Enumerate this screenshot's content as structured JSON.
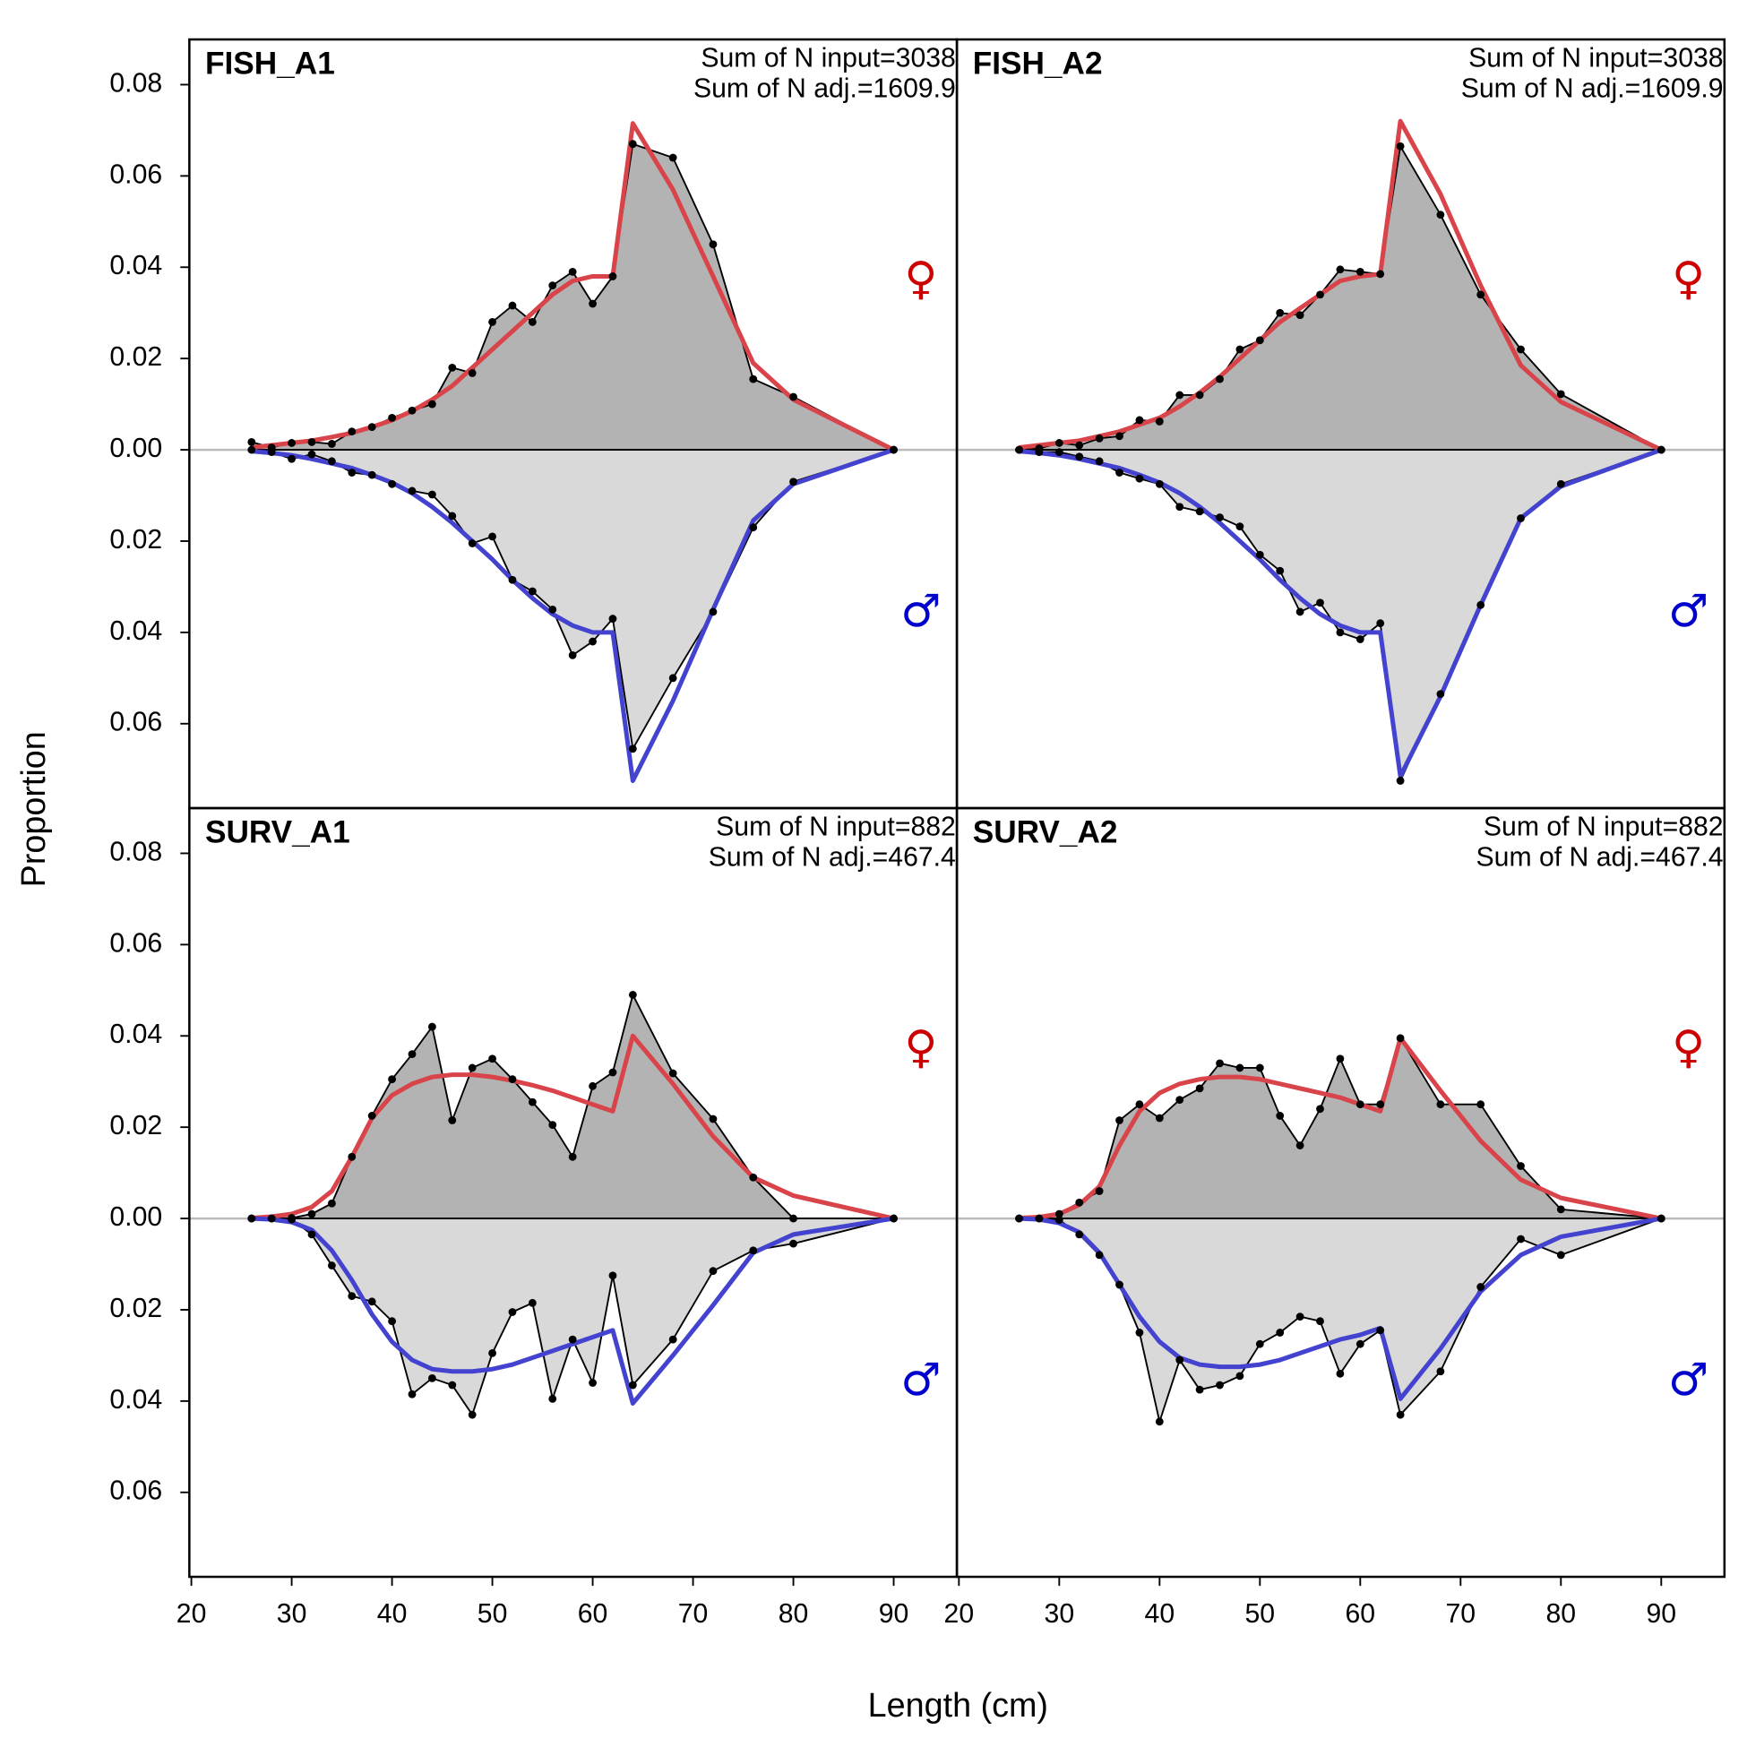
{
  "shared": {
    "xlabel": "Length (cm)",
    "ylabel": "Proportion",
    "xlim": [
      19.8,
      96.3
    ],
    "xticks": [
      20,
      30,
      40,
      50,
      60,
      70,
      80,
      90
    ],
    "ylim": [
      -0.0785,
      0.0899
    ],
    "yticks": [
      0.08,
      0.06,
      0.04,
      0.02,
      {
        "value": 0,
        "label": "0.00"
      },
      {
        "value": -0.02,
        "label": "0.02"
      },
      {
        "value": -0.04,
        "label": "0.04"
      },
      {
        "value": -0.06,
        "label": "0.06"
      }
    ]
  },
  "chart_data": [
    {
      "type": "area",
      "title": "FISH_A1",
      "annotations": [
        "Sum of N input=3038",
        "Sum of N adj.=1609.9"
      ],
      "x": [
        26,
        28,
        30,
        32,
        34,
        36,
        38,
        40,
        42,
        44,
        46,
        48,
        50,
        52,
        54,
        56,
        58,
        60,
        62,
        64,
        68,
        72,
        76,
        80,
        90
      ],
      "series": [
        {
          "kind": "observed",
          "symbol": "♀",
          "color": "#cc0000",
          "fill": "#b3b3b3",
          "values": [
            0.0017,
            0.0005,
            0.0015,
            0.0017,
            0.0013,
            0.004,
            0.005,
            0.007,
            0.0086,
            0.01,
            0.018,
            0.0168,
            0.028,
            0.0316,
            0.028,
            0.036,
            0.039,
            0.032,
            0.038,
            0.067,
            0.064,
            0.045,
            0.0155,
            0.0116,
            0
          ]
        },
        {
          "kind": "expected",
          "color": "#d9434a",
          "values": [
            0.0005,
            0.001,
            0.0015,
            0.002,
            0.0028,
            0.0037,
            0.005,
            0.0065,
            0.0085,
            0.011,
            0.014,
            0.018,
            0.022,
            0.026,
            0.03,
            0.034,
            0.037,
            0.038,
            0.038,
            0.0715,
            0.057,
            0.038,
            0.019,
            0.011,
            0
          ]
        },
        {
          "kind": "observed",
          "symbol": "♂",
          "color": "#0000cc",
          "fill": "#d9d9d9",
          "values": [
            0,
            -0.0005,
            -0.002,
            -0.001,
            -0.0025,
            -0.005,
            -0.0055,
            -0.0075,
            -0.009,
            -0.0098,
            -0.0145,
            -0.0205,
            -0.019,
            -0.0285,
            -0.031,
            -0.035,
            -0.045,
            -0.042,
            -0.037,
            -0.0655,
            -0.05,
            -0.0355,
            -0.017,
            -0.007,
            0
          ]
        },
        {
          "kind": "expected",
          "color": "#4343cf",
          "values": [
            -0.0003,
            -0.0007,
            -0.0012,
            -0.002,
            -0.003,
            -0.004,
            -0.0055,
            -0.0072,
            -0.0095,
            -0.0125,
            -0.016,
            -0.02,
            -0.024,
            -0.0285,
            -0.0325,
            -0.036,
            -0.0385,
            -0.04,
            -0.04,
            -0.0725,
            -0.055,
            -0.035,
            -0.0155,
            -0.0075,
            0
          ]
        }
      ]
    },
    {
      "type": "area",
      "title": "FISH_A2",
      "annotations": [
        "Sum of N input=3038",
        "Sum of N adj.=1609.9"
      ],
      "x": [
        26,
        28,
        30,
        32,
        34,
        36,
        38,
        40,
        42,
        44,
        46,
        48,
        50,
        52,
        54,
        56,
        58,
        60,
        62,
        64,
        68,
        72,
        76,
        80,
        90
      ],
      "series": [
        {
          "kind": "observed",
          "symbol": "♀",
          "color": "#cc0000",
          "fill": "#b3b3b3",
          "values": [
            0,
            0.0003,
            0.0015,
            0.001,
            0.0025,
            0.003,
            0.0065,
            0.0062,
            0.012,
            0.012,
            0.0155,
            0.022,
            0.024,
            0.03,
            0.0295,
            0.034,
            0.0395,
            0.039,
            0.0385,
            0.0665,
            0.0515,
            0.034,
            0.022,
            0.0122,
            0
          ]
        },
        {
          "kind": "expected",
          "color": "#d9434a",
          "values": [
            0.0005,
            0.001,
            0.0015,
            0.002,
            0.003,
            0.004,
            0.0055,
            0.007,
            0.0095,
            0.0125,
            0.016,
            0.02,
            0.024,
            0.028,
            0.031,
            0.034,
            0.037,
            0.038,
            0.0385,
            0.072,
            0.056,
            0.036,
            0.0185,
            0.0105,
            0
          ]
        },
        {
          "kind": "observed",
          "symbol": "♂",
          "color": "#0000cc",
          "fill": "#d9d9d9",
          "values": [
            0,
            -0.0005,
            -0.0005,
            -0.0015,
            -0.0025,
            -0.005,
            -0.0063,
            -0.0075,
            -0.0125,
            -0.0135,
            -0.0148,
            -0.0168,
            -0.023,
            -0.0265,
            -0.0355,
            -0.0335,
            -0.04,
            -0.0415,
            -0.038,
            -0.0725,
            -0.0535,
            -0.034,
            -0.015,
            -0.0075,
            0
          ]
        },
        {
          "kind": "expected",
          "color": "#4343cf",
          "values": [
            -0.0003,
            -0.0007,
            -0.0012,
            -0.002,
            -0.003,
            -0.004,
            -0.0055,
            -0.0072,
            -0.0095,
            -0.0125,
            -0.016,
            -0.02,
            -0.024,
            -0.0285,
            -0.0325,
            -0.036,
            -0.0385,
            -0.04,
            -0.04,
            -0.0715,
            -0.054,
            -0.034,
            -0.015,
            -0.008,
            0
          ]
        }
      ]
    },
    {
      "type": "area",
      "title": "SURV_A1",
      "annotations": [
        "Sum of N input=882",
        "Sum of N adj.=467.4"
      ],
      "x": [
        26,
        28,
        30,
        32,
        34,
        36,
        38,
        40,
        42,
        44,
        46,
        48,
        50,
        52,
        54,
        56,
        58,
        60,
        62,
        64,
        68,
        72,
        76,
        80,
        90
      ],
      "series": [
        {
          "kind": "observed",
          "symbol": "♀",
          "color": "#cc0000",
          "fill": "#b3b3b3",
          "values": [
            0,
            0,
            0.0001,
            0.001,
            0.0033,
            0.0135,
            0.0225,
            0.0305,
            0.036,
            0.042,
            0.0215,
            0.033,
            0.035,
            0.0305,
            0.0255,
            0.0205,
            0.0135,
            0.029,
            0.032,
            0.049,
            0.0318,
            0.0218,
            0.009,
            0,
            0
          ]
        },
        {
          "kind": "expected",
          "color": "#d9434a",
          "values": [
            0.0001,
            0.0004,
            0.001,
            0.0025,
            0.006,
            0.0135,
            0.022,
            0.027,
            0.0295,
            0.031,
            0.0315,
            0.0315,
            0.031,
            0.0302,
            0.0292,
            0.028,
            0.0265,
            0.025,
            0.0235,
            0.04,
            0.0295,
            0.018,
            0.009,
            0.005,
            0
          ]
        },
        {
          "kind": "observed",
          "symbol": "♂",
          "color": "#0000cc",
          "fill": "#d9d9d9",
          "values": [
            0,
            0,
            -0.0002,
            -0.0035,
            -0.0103,
            -0.017,
            -0.0182,
            -0.0225,
            -0.0385,
            -0.035,
            -0.0365,
            -0.043,
            -0.0295,
            -0.0205,
            -0.0185,
            -0.0395,
            -0.0265,
            -0.036,
            -0.0125,
            -0.0365,
            -0.0265,
            -0.0115,
            -0.007,
            -0.0055,
            0
          ]
        },
        {
          "kind": "expected",
          "color": "#4343cf",
          "values": [
            0,
            -0.0002,
            -0.0008,
            -0.0025,
            -0.007,
            -0.0135,
            -0.021,
            -0.027,
            -0.031,
            -0.033,
            -0.0335,
            -0.0335,
            -0.033,
            -0.032,
            -0.0305,
            -0.029,
            -0.0275,
            -0.026,
            -0.0245,
            -0.0405,
            -0.03,
            -0.019,
            -0.0075,
            -0.0035,
            0
          ]
        }
      ]
    },
    {
      "type": "area",
      "title": "SURV_A2",
      "annotations": [
        "Sum of N input=882",
        "Sum of N adj.=467.4"
      ],
      "x": [
        26,
        28,
        30,
        32,
        34,
        36,
        38,
        40,
        42,
        44,
        46,
        48,
        50,
        52,
        54,
        56,
        58,
        60,
        62,
        64,
        68,
        72,
        76,
        80,
        90
      ],
      "series": [
        {
          "kind": "observed",
          "symbol": "♀",
          "color": "#cc0000",
          "fill": "#b3b3b3",
          "values": [
            0,
            0,
            0.001,
            0.0035,
            0.006,
            0.0215,
            0.025,
            0.022,
            0.026,
            0.0285,
            0.034,
            0.033,
            0.033,
            0.0225,
            0.016,
            0.024,
            0.035,
            0.025,
            0.025,
            0.0395,
            0.025,
            0.025,
            0.0115,
            0.002,
            0
          ]
        },
        {
          "kind": "expected",
          "color": "#d9434a",
          "values": [
            0.0001,
            0.0003,
            0.001,
            0.003,
            0.007,
            0.016,
            0.0235,
            0.0275,
            0.0295,
            0.0305,
            0.031,
            0.031,
            0.0305,
            0.0295,
            0.0285,
            0.0275,
            0.0265,
            0.025,
            0.0235,
            0.0395,
            0.028,
            0.017,
            0.0085,
            0.0045,
            0
          ]
        },
        {
          "kind": "observed",
          "symbol": "♂",
          "color": "#0000cc",
          "fill": "#d9d9d9",
          "values": [
            0,
            0,
            -0.0003,
            -0.0035,
            -0.008,
            -0.0145,
            -0.025,
            -0.0445,
            -0.031,
            -0.0375,
            -0.0365,
            -0.0345,
            -0.0275,
            -0.025,
            -0.0215,
            -0.0225,
            -0.034,
            -0.0275,
            -0.0245,
            -0.043,
            -0.0335,
            -0.015,
            -0.0045,
            -0.008,
            0
          ]
        },
        {
          "kind": "expected",
          "color": "#4343cf",
          "values": [
            0,
            -0.0002,
            -0.001,
            -0.003,
            -0.0075,
            -0.0145,
            -0.0215,
            -0.027,
            -0.0305,
            -0.032,
            -0.0325,
            -0.0325,
            -0.032,
            -0.031,
            -0.0295,
            -0.028,
            -0.0265,
            -0.0255,
            -0.024,
            -0.0395,
            -0.0285,
            -0.016,
            -0.008,
            -0.004,
            0
          ]
        }
      ]
    }
  ]
}
